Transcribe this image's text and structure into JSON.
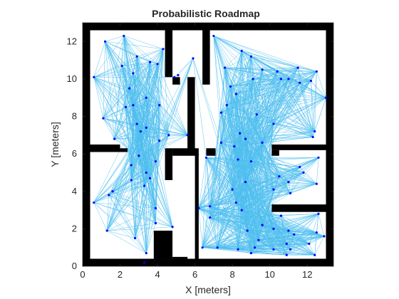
{
  "chart_data": {
    "type": "scatter",
    "title": "Probabilistic Roadmap",
    "xlabel": "X [meters]",
    "ylabel": "Y [meters]",
    "xlim": [
      0,
      13.4
    ],
    "ylim": [
      0,
      13
    ],
    "xticks": [
      0,
      2,
      4,
      6,
      8,
      10,
      12
    ],
    "yticks": [
      0,
      2,
      4,
      6,
      8,
      10,
      12
    ],
    "colors": {
      "edges": "#4DBEEE",
      "nodes": "#0000FF",
      "walls": "#000000",
      "axes": "#262626"
    },
    "obstacles": [
      {
        "x": [
          0,
          0.4
        ],
        "y": [
          0,
          13
        ]
      },
      {
        "x": [
          13,
          13.4
        ],
        "y": [
          0,
          13
        ]
      },
      {
        "x": [
          0,
          13.4
        ],
        "y": [
          12.6,
          13
        ]
      },
      {
        "x": [
          0,
          13.4
        ],
        "y": [
          0,
          0.4
        ]
      },
      {
        "x": [
          0.4,
          2
        ],
        "y": [
          6.1,
          6.5
        ]
      },
      {
        "x": [
          2,
          2.4
        ],
        "y": [
          6.1,
          6.3
        ]
      },
      {
        "x": [
          4.4,
          4.8
        ],
        "y": [
          4.6,
          6.3
        ]
      },
      {
        "x": [
          4.8,
          6.2
        ],
        "y": [
          5.9,
          6.3
        ]
      },
      {
        "x": [
          6.6,
          7.1
        ],
        "y": [
          5.9,
          6.3
        ]
      },
      {
        "x": [
          4.4,
          4.8
        ],
        "y": [
          10.1,
          12.6
        ]
      },
      {
        "x": [
          4.8,
          5.2
        ],
        "y": [
          9.7,
          10.1
        ]
      },
      {
        "x": [
          6.4,
          6.8
        ],
        "y": [
          9.7,
          12.6
        ]
      },
      {
        "x": [
          5.6,
          6.0
        ],
        "y": [
          6.1,
          10.1
        ]
      },
      {
        "x": [
          3.8,
          4.8
        ],
        "y": [
          0.4,
          1.9
        ]
      },
      {
        "x": [
          4.8,
          5.6
        ],
        "y": [
          0.4,
          0.5
        ]
      },
      {
        "x": [
          10.1,
          13.0
        ],
        "y": [
          6.2,
          6.5
        ]
      },
      {
        "x": [
          10.1,
          10.5
        ],
        "y": [
          5.9,
          6.2
        ]
      },
      {
        "x": [
          10.1,
          13.0
        ],
        "y": [
          2.9,
          3.3
        ]
      },
      {
        "x": [
          6.0,
          6.2
        ],
        "y": [
          0.4,
          6.0
        ]
      }
    ],
    "nodes": [
      [
        2.2,
        12.3
      ],
      [
        1.2,
        12.0
      ],
      [
        2.9,
        11.2
      ],
      [
        4.3,
        11.6
      ],
      [
        4.0,
        10.8
      ],
      [
        5.9,
        11.1
      ],
      [
        0.6,
        10.1
      ],
      [
        2.1,
        10.7
      ],
      [
        2.7,
        10.3
      ],
      [
        3.6,
        10.9
      ],
      [
        5.1,
        10.2
      ],
      [
        4.9,
        10.1
      ],
      [
        2.5,
        9.5
      ],
      [
        3.4,
        9.0
      ],
      [
        2.7,
        8.6
      ],
      [
        2.3,
        8.5
      ],
      [
        1.1,
        7.9
      ],
      [
        4.1,
        8.6
      ],
      [
        3.4,
        7.4
      ],
      [
        2.9,
        7.6
      ],
      [
        4.6,
        7.0
      ],
      [
        4.1,
        6.7
      ],
      [
        5.6,
        7.0
      ],
      [
        3.1,
        7.2
      ],
      [
        1.7,
        6.8
      ],
      [
        3.0,
        5.9
      ],
      [
        2.6,
        5.4
      ],
      [
        3.9,
        5.6
      ],
      [
        3.4,
        5.0
      ],
      [
        3.6,
        4.7
      ],
      [
        2.6,
        4.6
      ],
      [
        1.6,
        4.0
      ],
      [
        1.4,
        3.8
      ],
      [
        3.3,
        4.3
      ],
      [
        0.6,
        3.4
      ],
      [
        3.9,
        3.1
      ],
      [
        1.3,
        1.9
      ],
      [
        4.8,
        2.1
      ],
      [
        3.9,
        2.3
      ],
      [
        2.8,
        1.5
      ],
      [
        3.4,
        0.7
      ],
      [
        3.3,
        0.2
      ],
      [
        6.2,
        3.1
      ],
      [
        6.6,
        5.8
      ],
      [
        6.8,
        3.2
      ],
      [
        6.4,
        1.0
      ],
      [
        7.2,
        1.0
      ],
      [
        6.8,
        2.6
      ],
      [
        7.4,
        6.6
      ],
      [
        8.1,
        6.4
      ],
      [
        8.7,
        6.8
      ],
      [
        8.4,
        7.1
      ],
      [
        8.3,
        5.7
      ],
      [
        9.0,
        5.6
      ],
      [
        8.7,
        4.5
      ],
      [
        8.0,
        4.1
      ],
      [
        8.2,
        3.4
      ],
      [
        8.5,
        3.0
      ],
      [
        8.8,
        1.9
      ],
      [
        9.4,
        1.4
      ],
      [
        8.3,
        0.9
      ],
      [
        9.2,
        1.0
      ],
      [
        9.6,
        2.2
      ],
      [
        10.2,
        2.0
      ],
      [
        10.6,
        2.7
      ],
      [
        11.0,
        1.9
      ],
      [
        10.9,
        1.2
      ],
      [
        11.1,
        0.9
      ],
      [
        11.3,
        1.7
      ],
      [
        12.1,
        1.2
      ],
      [
        12.6,
        2.8
      ],
      [
        12.5,
        1.8
      ],
      [
        12.9,
        1.6
      ],
      [
        12.4,
        0.6
      ],
      [
        10.9,
        0.6
      ],
      [
        10.2,
        0.9
      ],
      [
        9.0,
        0.7
      ],
      [
        7.4,
        8.2
      ],
      [
        7.7,
        8.6
      ],
      [
        7.9,
        9.6
      ],
      [
        8.2,
        9.2
      ],
      [
        9.1,
        10.0
      ],
      [
        7.6,
        10.6
      ],
      [
        8.5,
        11.5
      ],
      [
        9.0,
        11.2
      ],
      [
        9.6,
        10.5
      ],
      [
        10.4,
        10.4
      ],
      [
        11.0,
        10.0
      ],
      [
        10.6,
        10.0
      ],
      [
        11.5,
        10.6
      ],
      [
        11.6,
        9.8
      ],
      [
        12.2,
        9.9
      ],
      [
        12.5,
        10.4
      ],
      [
        12.4,
        7.2
      ],
      [
        12.3,
        6.9
      ],
      [
        13.0,
        9.0
      ],
      [
        7.0,
        12.3
      ],
      [
        10.2,
        4.1
      ],
      [
        11.0,
        4.5
      ],
      [
        11.8,
        5.0
      ],
      [
        11.6,
        5.3
      ],
      [
        12.5,
        4.4
      ],
      [
        12.6,
        5.8
      ],
      [
        11.1,
        3.9
      ],
      [
        10.5,
        4.8
      ],
      [
        9.6,
        6.6
      ],
      [
        10.2,
        7.6
      ],
      [
        9.3,
        8.1
      ]
    ]
  }
}
